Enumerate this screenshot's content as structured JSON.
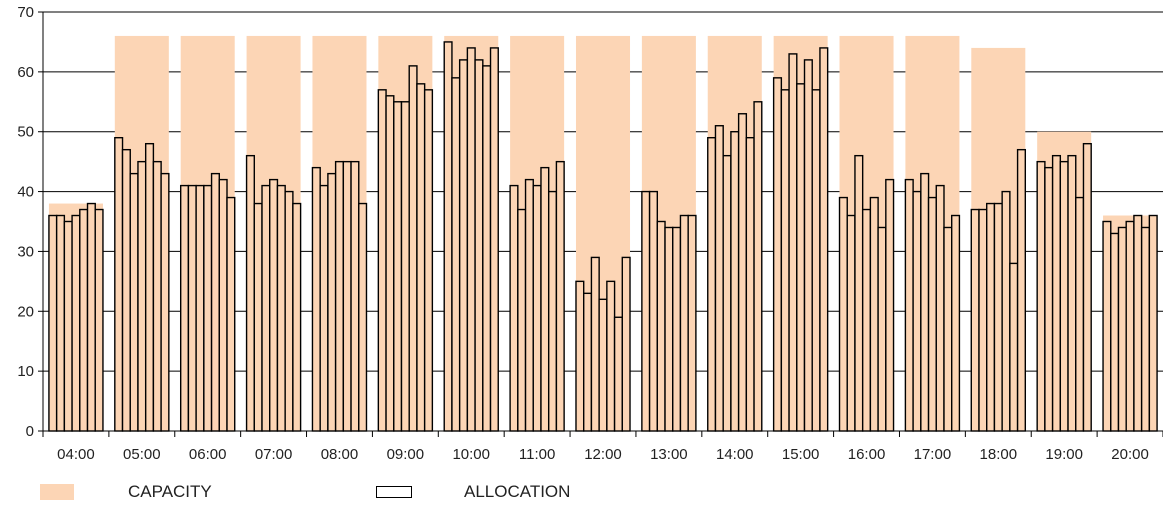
{
  "chart_data": {
    "type": "bar",
    "categories": [
      "04:00",
      "05:00",
      "06:00",
      "07:00",
      "08:00",
      "09:00",
      "10:00",
      "11:00",
      "12:00",
      "13:00",
      "14:00",
      "15:00",
      "16:00",
      "17:00",
      "18:00",
      "19:00",
      "20:00"
    ],
    "ylim": [
      0,
      70
    ],
    "yticks": [
      0,
      10,
      20,
      30,
      40,
      50,
      60,
      70
    ],
    "ytick_labels": [
      "0",
      "10",
      "20",
      "30",
      "40",
      "50",
      "60",
      "70"
    ],
    "grid": true,
    "legend_position": "bottom-left",
    "series": [
      {
        "name": "CAPACITY",
        "kind": "background-bar",
        "color": "#fcd5b5",
        "values": [
          38,
          66,
          66,
          66,
          66,
          66,
          66,
          66,
          66,
          66,
          66,
          66,
          66,
          66,
          64,
          50,
          36
        ]
      },
      {
        "name": "ALLOCATION",
        "kind": "grouped-bars",
        "fill": "#fcd5b5",
        "stroke": "#000000",
        "values": [
          [
            36,
            36,
            35,
            36,
            37,
            38,
            37
          ],
          [
            49,
            47,
            43,
            45,
            48,
            45,
            43
          ],
          [
            41,
            41,
            41,
            41,
            43,
            42,
            39
          ],
          [
            46,
            38,
            41,
            42,
            41,
            40,
            38
          ],
          [
            44,
            41,
            43,
            45,
            45,
            45,
            38
          ],
          [
            57,
            56,
            55,
            55,
            61,
            58,
            57
          ],
          [
            65,
            59,
            62,
            64,
            62,
            61,
            64
          ],
          [
            41,
            37,
            42,
            41,
            44,
            40,
            45
          ],
          [
            25,
            23,
            29,
            22,
            25,
            19,
            29
          ],
          [
            40,
            40,
            35,
            34,
            34,
            36,
            36
          ],
          [
            49,
            51,
            46,
            50,
            53,
            49,
            55
          ],
          [
            59,
            57,
            63,
            58,
            62,
            57,
            64
          ],
          [
            39,
            36,
            46,
            37,
            39,
            34,
            42
          ],
          [
            42,
            40,
            43,
            39,
            41,
            34,
            36
          ],
          [
            37,
            37,
            38,
            38,
            40,
            28,
            47
          ],
          [
            45,
            44,
            46,
            45,
            46,
            39,
            48
          ],
          [
            35,
            33,
            34,
            35,
            36,
            34,
            36
          ]
        ]
      }
    ]
  },
  "legend": {
    "capacity_label": "CAPACITY",
    "allocation_label": "ALLOCATION"
  }
}
